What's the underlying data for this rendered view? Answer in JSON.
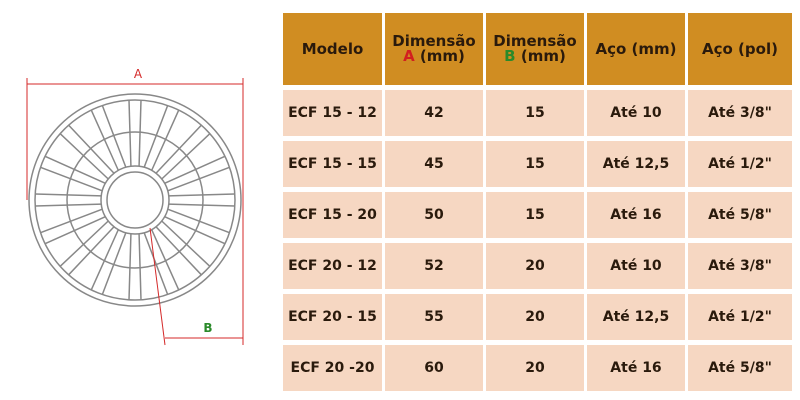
{
  "diagram": {
    "label_a": "A",
    "label_b": "B"
  },
  "table": {
    "header": [
      {
        "text": "Modelo"
      },
      {
        "text": "Dimensão",
        "letter": "A",
        "unit": "(mm)"
      },
      {
        "text": "Dimensão",
        "letter": "B",
        "unit": "(mm)"
      },
      {
        "text": "Aço (mm)"
      },
      {
        "text": "Aço (pol)"
      }
    ],
    "rows": [
      [
        "ECF 15 - 12",
        "42",
        "15",
        "Até 10",
        "Até 3/8\""
      ],
      [
        "ECF 15 - 15",
        "45",
        "15",
        "Até 12,5",
        "Até 1/2\""
      ],
      [
        "ECF 15 - 20",
        "50",
        "15",
        "Até 16",
        "Até 5/8\""
      ],
      [
        "ECF 20 - 12",
        "52",
        "20",
        "Até 10",
        "Até 3/8\""
      ],
      [
        "ECF 20 - 15",
        "55",
        "20",
        "Até 12,5",
        "Até 1/2\""
      ],
      [
        "ECF 20 -20",
        "60",
        "20",
        "Até 16",
        "Até 5/8\""
      ]
    ]
  }
}
